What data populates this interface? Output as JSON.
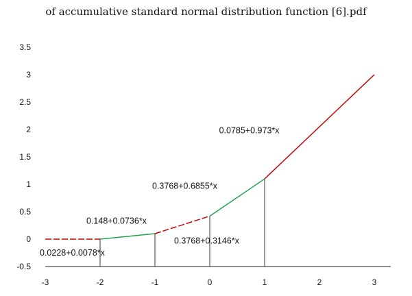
{
  "chart_data": {
    "type": "line",
    "title": "of accumulative standard normal distribution function [6].pdf",
    "xlabel": "",
    "ylabel": "",
    "xlim": [
      -3,
      3
    ],
    "ylim": [
      -0.5,
      3.5
    ],
    "x_ticks": [
      -3,
      -2,
      -1,
      0,
      1,
      2,
      3
    ],
    "y_ticks": [
      -0.5,
      0,
      0.5,
      1,
      1.5,
      2,
      2.5,
      3,
      3.5
    ],
    "x_tick_labels": [
      "-3",
      "-2",
      "-1",
      "0",
      "1",
      "2",
      "3"
    ],
    "y_tick_labels": [
      "-0.5",
      "0",
      "0.5",
      "1",
      "1.5",
      "2",
      "2.5",
      "3",
      "3.5"
    ],
    "grid": false,
    "series": [
      {
        "color": "#cc0000",
        "dashed": true,
        "x": [
          -3,
          -2
        ],
        "y": [
          0.0,
          0.0
        ]
      },
      {
        "color": "#22a050",
        "dashed": false,
        "x": [
          -2,
          -1
        ],
        "y": [
          0.0,
          0.1
        ]
      },
      {
        "color": "#cc0000",
        "dashed": true,
        "x": [
          -1,
          0
        ],
        "y": [
          0.1,
          0.42
        ]
      },
      {
        "color": "#22a050",
        "dashed": false,
        "x": [
          0,
          1
        ],
        "y": [
          0.42,
          1.1
        ]
      },
      {
        "color": "#cc0000",
        "dashed": false,
        "x": [
          1,
          3
        ],
        "y": [
          1.1,
          3.0
        ]
      }
    ],
    "dividers": [
      {
        "x": -2,
        "y": 0.0
      },
      {
        "x": -1,
        "y": 0.1
      },
      {
        "x": 0,
        "y": 0.42
      },
      {
        "x": 1,
        "y": 1.1
      }
    ],
    "annotations": [
      {
        "text": "0.0228+0.0078*x",
        "x": -3.1,
        "y": -0.3
      },
      {
        "text": "0.148+0.0736*x",
        "x": -2.25,
        "y": 0.28
      },
      {
        "text": "0.3768+0.3146*x",
        "x": -0.65,
        "y": -0.08
      },
      {
        "text": "0.3768+0.6855*x",
        "x": -1.05,
        "y": 0.92
      },
      {
        "text": "0.0785+0.973*x",
        "x": 0.17,
        "y": 1.93
      }
    ]
  }
}
